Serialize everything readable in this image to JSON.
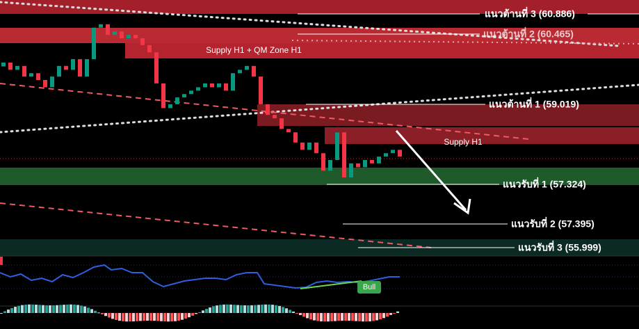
{
  "chart_data": {
    "type": "candlestick",
    "open": [
      59.8,
      59.88,
      59.73,
      59.81,
      59.59,
      59.66,
      59.52,
      59.37,
      59.59,
      59.81,
      59.73,
      59.95,
      59.59,
      59.95,
      60.6,
      60.67,
      60.45,
      60.52,
      60.38,
      60.45,
      60.38,
      60.24,
      60.09,
      59.45,
      58.94,
      59.02,
      59.16,
      59.23,
      59.3,
      59.37,
      59.45,
      59.37,
      59.45,
      59.3,
      59.66,
      59.73,
      59.81,
      59.59,
      59.02,
      58.8,
      58.73,
      58.51,
      58.44,
      58.23,
      58.08,
      58.23,
      58.01,
      57.65,
      57.87,
      58.44,
      57.51,
      57.8,
      57.72,
      57.87,
      57.8,
      57.94,
      58.01,
      58.08
    ],
    "close": [
      59.88,
      59.73,
      59.81,
      59.59,
      59.66,
      59.52,
      59.37,
      59.59,
      59.81,
      59.73,
      59.95,
      59.59,
      59.95,
      60.6,
      60.67,
      60.45,
      60.52,
      60.38,
      60.45,
      60.38,
      60.24,
      60.09,
      59.45,
      58.94,
      59.02,
      59.16,
      59.23,
      59.3,
      59.37,
      59.45,
      59.37,
      59.45,
      59.3,
      59.66,
      59.73,
      59.81,
      59.59,
      59.02,
      58.8,
      58.73,
      58.51,
      58.44,
      58.23,
      58.08,
      58.23,
      58.01,
      57.65,
      57.87,
      58.44,
      57.51,
      57.8,
      57.72,
      57.87,
      57.8,
      57.94,
      58.01,
      58.08,
      57.94
    ],
    "ylim": [
      55.89,
      61.17
    ],
    "color_up": "#089981",
    "color_down": "#f23645"
  },
  "levels": [
    "แนวต้านที่ 3 (60.886)",
    "แนวต้านที่ 2 (60.465)",
    "แนวต้านที่ 1 (59.019)",
    "แนวรับที่ 1 (57.324)",
    "แนวรับที่ 2 (57.395)",
    "แนวรับที่ 3 (55.999)"
  ],
  "zones": [
    "Supply H1 + QM Zone H1",
    "Supply H1"
  ],
  "badge": "Bull"
}
